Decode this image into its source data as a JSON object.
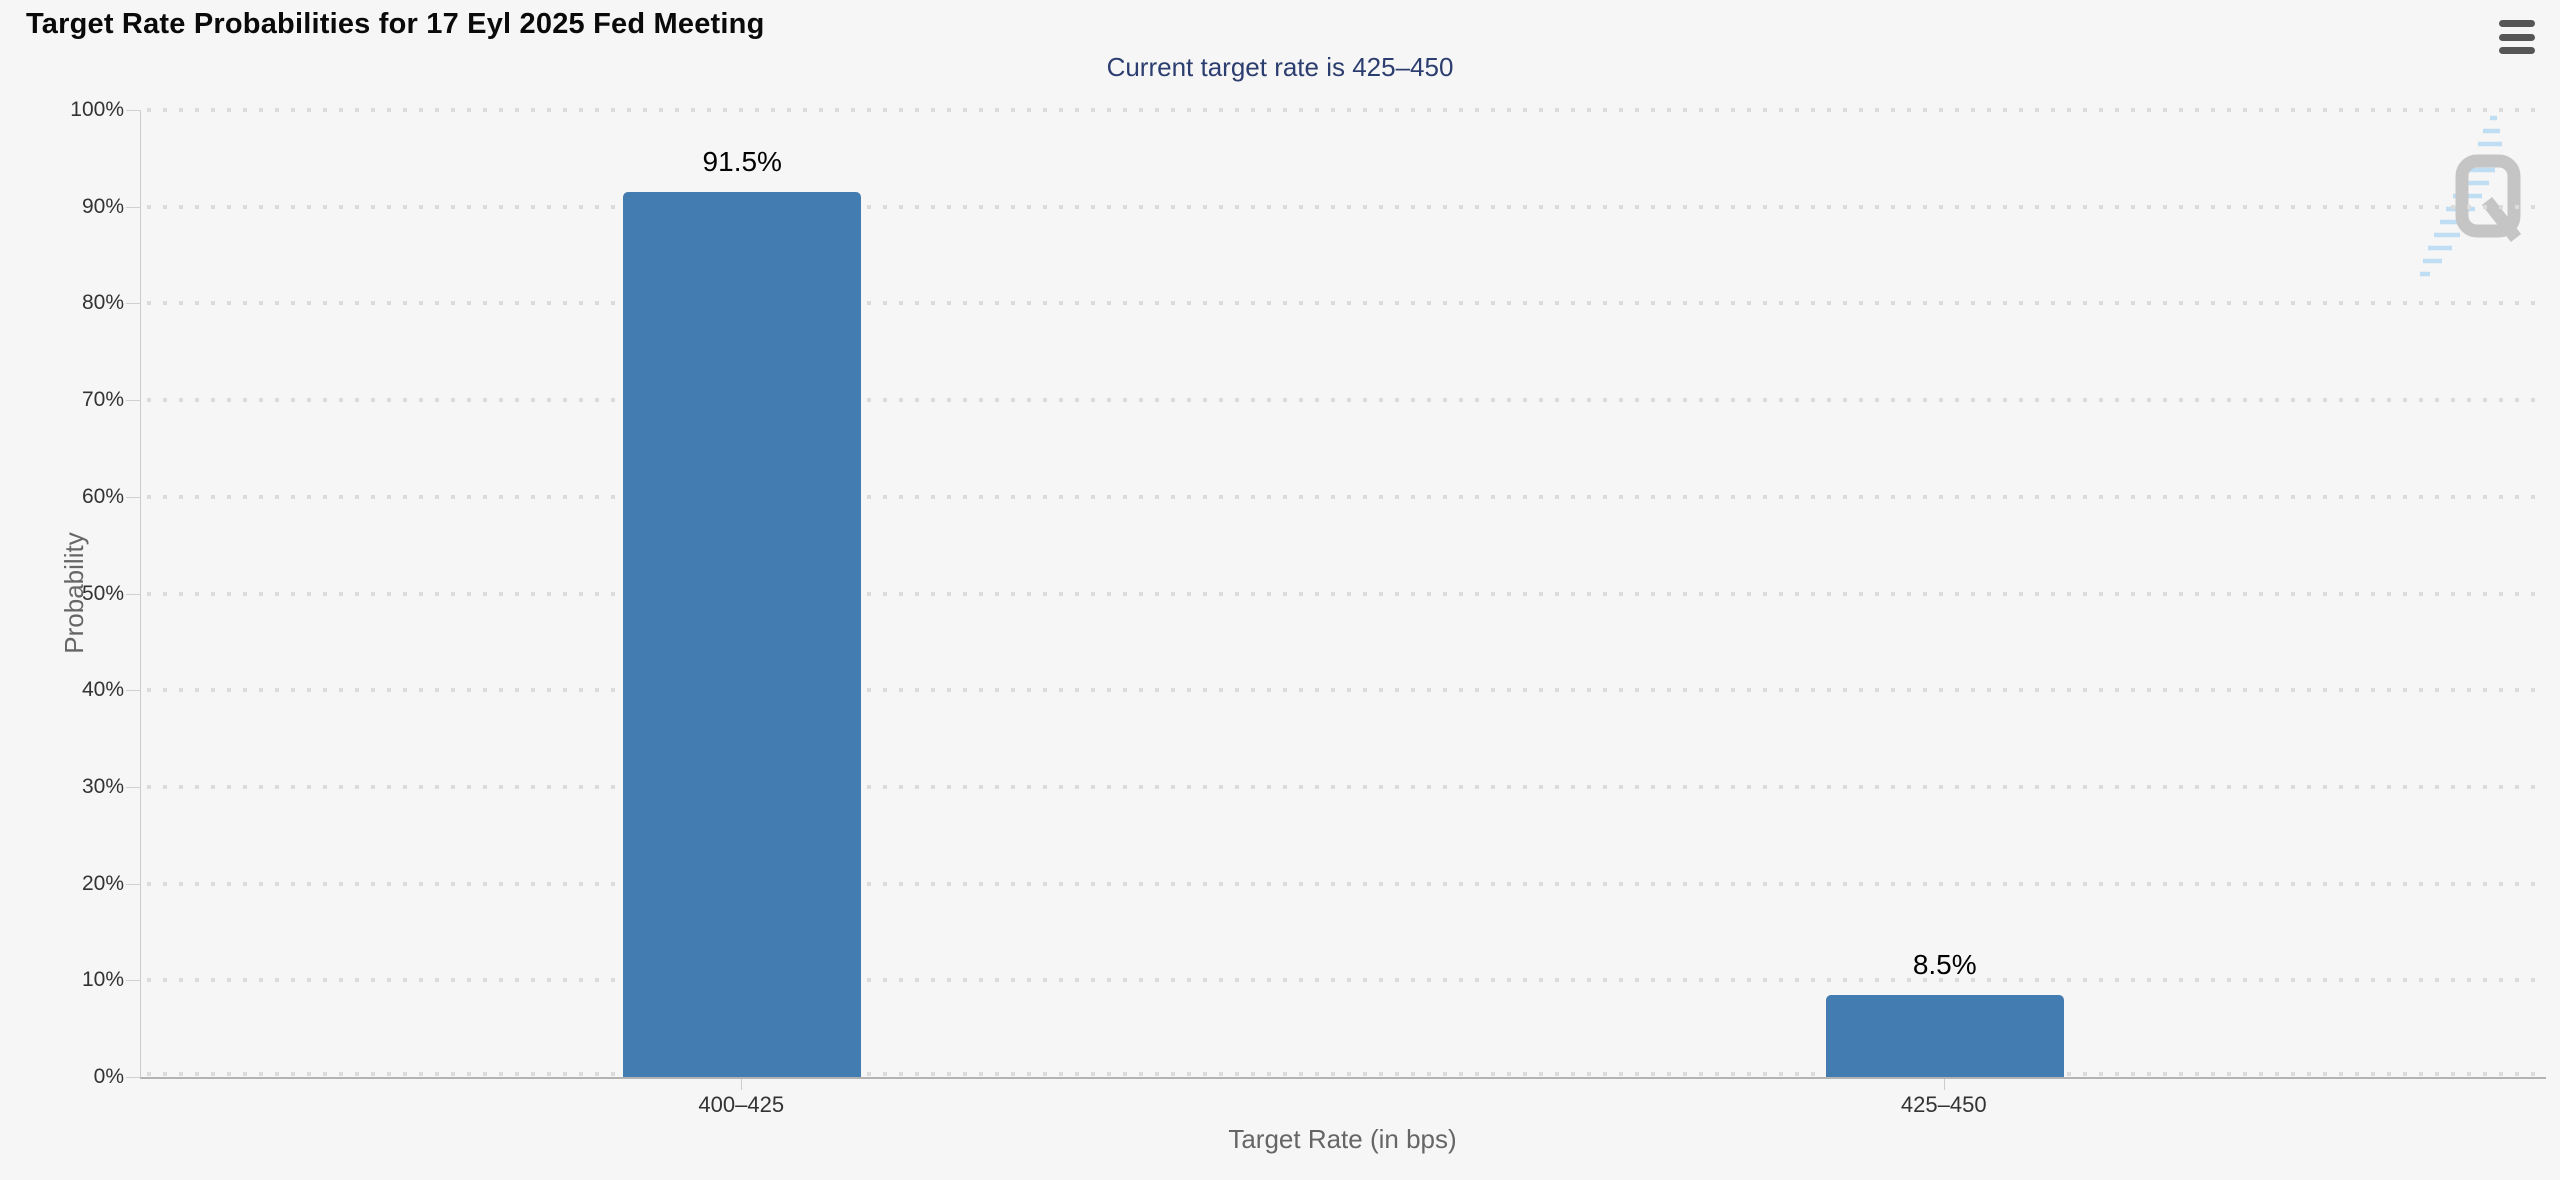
{
  "header": {
    "menu_icon": "hamburger-menu-icon"
  },
  "watermark": {
    "letter_icon": "quikstrike-q-logo",
    "q_color": "#c5c5c5",
    "swoosh_color": "#badbf3"
  },
  "chart_data": {
    "type": "bar",
    "title": "Target Rate Probabilities for 17 Eyl 2025 Fed Meeting",
    "subtitle": "Current target rate is 425–450",
    "categories": [
      "400–425",
      "425–450"
    ],
    "values": [
      91.5,
      8.5
    ],
    "value_labels": [
      "91.5%",
      "8.5%"
    ],
    "xlabel": "Target Rate (in bps)",
    "ylabel": "Probability",
    "ylim": [
      0,
      100
    ],
    "ytick_step": 10,
    "ytick_labels": [
      "100%",
      "90%",
      "80%",
      "70%",
      "60%",
      "50%",
      "40%",
      "30%",
      "20%",
      "10%",
      "0%"
    ],
    "legend": "none",
    "grid": "horizontal-dotted",
    "colors": {
      "bar": "#427cb0",
      "title": "#0a0a0a",
      "subtitle": "#2c3e6f",
      "tick_label": "#333333",
      "axis_title": "#666666",
      "value_label": "#000000",
      "gridline": "#dcdcdc",
      "xaxis_line": "#b3b3b3",
      "yaxis_line": "#cccccc",
      "background": "#f6f6f6",
      "menu_icon": "#565656"
    }
  }
}
